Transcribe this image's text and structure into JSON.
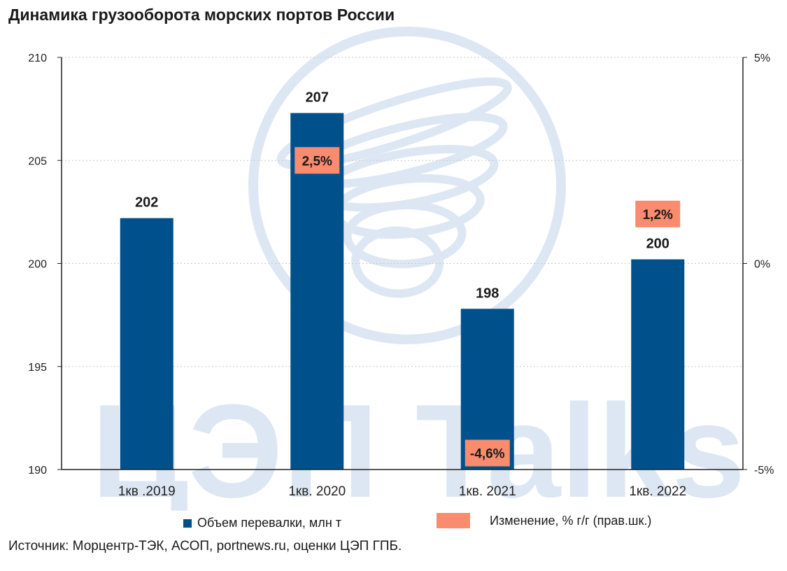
{
  "title": "Динамика грузооборота морских портов России",
  "source": "Источник: Морцентр-ТЭК, АСОП, portnews.ru, оценки ЦЭП ГПБ.",
  "watermark": {
    "text": "ЦЭП Talks",
    "logo": "gazprombank-globe-logo"
  },
  "colors": {
    "bar": "#00518B",
    "change_label": "#F98B6F",
    "grid": "#c8c8c8",
    "watermark": "#dde7f3"
  },
  "chart_data": {
    "type": "bar",
    "categories": [
      "1кв .2019",
      "1кв. 2020",
      "1кв. 2021",
      "1кв. 2022"
    ],
    "series": [
      {
        "name": "Объем перевалки, млн т",
        "axis": "left",
        "values": [
          202.2,
          207.3,
          197.8,
          200.2
        ],
        "labels": [
          "202",
          "207",
          "198",
          "200"
        ]
      },
      {
        "name": "Изменение, % г/г (прав.шк.)",
        "axis": "right",
        "values": [
          null,
          2.5,
          -4.6,
          1.2
        ],
        "labels": [
          "",
          "2,5%",
          "-4,6%",
          "1,2%"
        ]
      }
    ],
    "ylim": [
      190,
      210
    ],
    "yticks": [
      190,
      195,
      200,
      205,
      210
    ],
    "y2lim": [
      -5,
      5
    ],
    "y2ticks": [
      {
        "value": 5,
        "label": "5%"
      },
      {
        "value": 0,
        "label": "0%"
      },
      {
        "value": -5,
        "label": "-5%"
      }
    ],
    "grid": true,
    "legend": "bottom"
  }
}
